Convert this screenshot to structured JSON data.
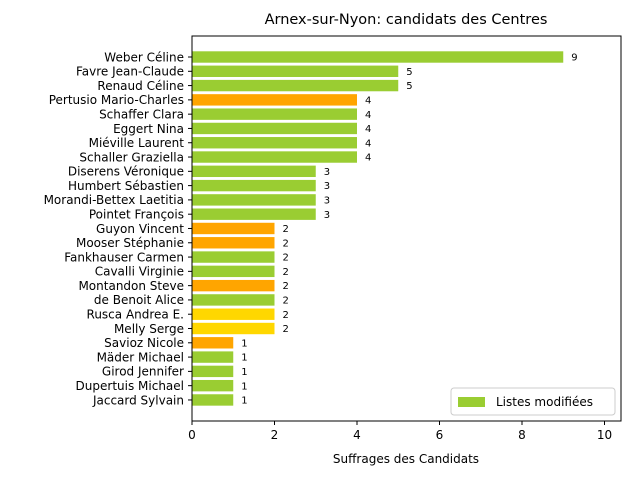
{
  "chart_data": {
    "type": "bar",
    "orientation": "horizontal",
    "title": "Arnex-sur-Nyon: candidats des Centres",
    "xlabel": "Suffrages des Candidats",
    "ylabel": "",
    "xlim": [
      0,
      10.4
    ],
    "xticks": [
      0,
      2,
      4,
      6,
      8,
      10
    ],
    "legend": {
      "label": "Listes modifiées",
      "color": "#9acd32",
      "placement": "lower-right"
    },
    "bars": [
      {
        "label": "Weber Céline",
        "value": 9,
        "color": "#9acd32"
      },
      {
        "label": "Favre Jean-Claude",
        "value": 5,
        "color": "#9acd32"
      },
      {
        "label": "Renaud Céline",
        "value": 5,
        "color": "#9acd32"
      },
      {
        "label": "Pertusio Mario-Charles",
        "value": 4,
        "color": "#ffa500"
      },
      {
        "label": "Schaffer Clara",
        "value": 4,
        "color": "#9acd32"
      },
      {
        "label": "Eggert Nina",
        "value": 4,
        "color": "#9acd32"
      },
      {
        "label": "Miéville Laurent",
        "value": 4,
        "color": "#9acd32"
      },
      {
        "label": "Schaller Graziella",
        "value": 4,
        "color": "#9acd32"
      },
      {
        "label": "Diserens Véronique",
        "value": 3,
        "color": "#9acd32"
      },
      {
        "label": "Humbert Sébastien",
        "value": 3,
        "color": "#9acd32"
      },
      {
        "label": "Morandi-Bettex Laetitia",
        "value": 3,
        "color": "#9acd32"
      },
      {
        "label": "Pointet François",
        "value": 3,
        "color": "#9acd32"
      },
      {
        "label": "Guyon Vincent",
        "value": 2,
        "color": "#ffa500"
      },
      {
        "label": "Mooser Stéphanie",
        "value": 2,
        "color": "#ffa500"
      },
      {
        "label": "Fankhauser Carmen",
        "value": 2,
        "color": "#9acd32"
      },
      {
        "label": "Cavalli Virginie",
        "value": 2,
        "color": "#9acd32"
      },
      {
        "label": "Montandon Steve",
        "value": 2,
        "color": "#ffa500"
      },
      {
        "label": "de Benoit Alice",
        "value": 2,
        "color": "#9acd32"
      },
      {
        "label": "Rusca Andrea E.",
        "value": 2,
        "color": "#ffd700"
      },
      {
        "label": "Melly Serge",
        "value": 2,
        "color": "#ffd700"
      },
      {
        "label": "Savioz Nicole",
        "value": 1,
        "color": "#ffa500"
      },
      {
        "label": "Mäder Michael",
        "value": 1,
        "color": "#9acd32"
      },
      {
        "label": "Girod Jennifer",
        "value": 1,
        "color": "#9acd32"
      },
      {
        "label": "Dupertuis Michael",
        "value": 1,
        "color": "#9acd32"
      },
      {
        "label": "Jaccard Sylvain",
        "value": 1,
        "color": "#9acd32"
      }
    ]
  }
}
